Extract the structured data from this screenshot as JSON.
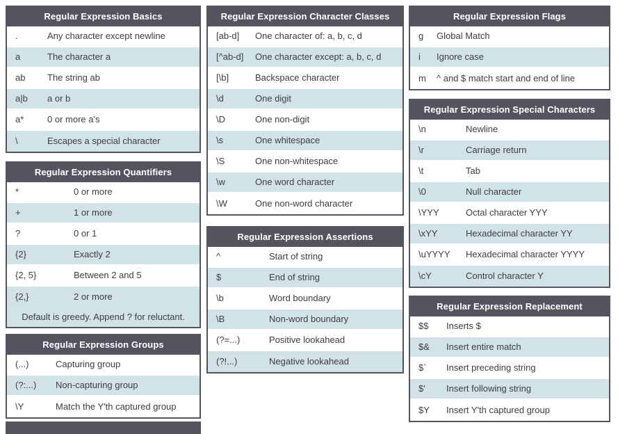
{
  "colors": {
    "header_bg": "#54545f",
    "border": "#54545f",
    "row_alt_bg": "#d1e2e9",
    "row_bg": "#ffffff",
    "header_text": "#ffffff",
    "row_text": "#3d3d3d"
  },
  "tables": [
    {
      "id": "basics",
      "title": "Regular Expression Basics",
      "rows": [
        {
          "symbol": ".",
          "description": "Any character except newline"
        },
        {
          "symbol": "a",
          "description": "The character a"
        },
        {
          "symbol": "ab",
          "description": "The string ab"
        },
        {
          "symbol": "a|b",
          "description": "a or b"
        },
        {
          "symbol": "a*",
          "description": "0 or more a's"
        },
        {
          "symbol": "\\",
          "description": "Escapes a special character"
        }
      ]
    },
    {
      "id": "quantifiers",
      "title": "Regular Expression Quantifiers",
      "rows": [
        {
          "symbol": "*",
          "description": "0 or more"
        },
        {
          "symbol": "+",
          "description": "1 or more"
        },
        {
          "symbol": "?",
          "description": "0 or 1"
        },
        {
          "symbol": "{2}",
          "description": "Exactly 2"
        },
        {
          "symbol": "{2, 5}",
          "description": "Between 2 and 5"
        },
        {
          "symbol": "{2,}",
          "description": "2 or more"
        }
      ],
      "footer": "Default is greedy. Append ? for reluctant."
    },
    {
      "id": "groups",
      "title": "Regular Expression Groups",
      "rows": [
        {
          "symbol": "(...)",
          "description": "Capturing group"
        },
        {
          "symbol": "(?:...)",
          "description": "Non-capturing group"
        },
        {
          "symbol": "\\Y",
          "description": "Match the Y'th captured group"
        }
      ]
    },
    {
      "id": "charclasses",
      "title": "Regular Expression Character Classes",
      "rows": [
        {
          "symbol": "[ab-d]",
          "description": "One character of: a, b, c, d"
        },
        {
          "symbol": "[^ab-d]",
          "description": "One character except: a, b, c, d"
        },
        {
          "symbol": "[\\b]",
          "description": "Backspace character"
        },
        {
          "symbol": "\\d",
          "description": "One digit"
        },
        {
          "symbol": "\\D",
          "description": "One non-digit"
        },
        {
          "symbol": "\\s",
          "description": "One whitespace"
        },
        {
          "symbol": "\\S",
          "description": "One non-whitespace"
        },
        {
          "symbol": "\\w",
          "description": "One word character"
        },
        {
          "symbol": "\\W",
          "description": "One non-word character"
        }
      ]
    },
    {
      "id": "assertions",
      "title": "Regular Expression Assertions",
      "rows": [
        {
          "symbol": "^",
          "description": "Start of string"
        },
        {
          "symbol": "$",
          "description": "End of string"
        },
        {
          "symbol": "\\b",
          "description": "Word boundary"
        },
        {
          "symbol": "\\B",
          "description": "Non-word boundary"
        },
        {
          "symbol": "(?=...)",
          "description": "Positive lookahead"
        },
        {
          "symbol": "(?!...)",
          "description": "Negative lookahead"
        }
      ]
    },
    {
      "id": "flags",
      "title": "Regular Expression Flags",
      "rows": [
        {
          "symbol": "g",
          "description": "Global Match"
        },
        {
          "symbol": "i",
          "description": "Ignore case"
        },
        {
          "symbol": "m",
          "description": "^ and $ match start and end of line"
        }
      ]
    },
    {
      "id": "special",
      "title": "Regular Expression Special Characters",
      "rows": [
        {
          "symbol": "\\n",
          "description": "Newline"
        },
        {
          "symbol": "\\r",
          "description": "Carriage return"
        },
        {
          "symbol": "\\t",
          "description": "Tab"
        },
        {
          "symbol": "\\0",
          "description": "Null character"
        },
        {
          "symbol": "\\YYY",
          "description": "Octal character YYY"
        },
        {
          "symbol": "\\xYY",
          "description": "Hexadecimal character YY"
        },
        {
          "symbol": "\\uYYYY",
          "description": "Hexadecimal character YYYY"
        },
        {
          "symbol": "\\cY",
          "description": "Control character Y"
        }
      ]
    },
    {
      "id": "replacement",
      "title": "Regular Expression Replacement",
      "rows": [
        {
          "symbol": "$$",
          "description": "Inserts $"
        },
        {
          "symbol": "$&",
          "description": "Insert entire match"
        },
        {
          "symbol": "$`",
          "description": "Insert preceding string"
        },
        {
          "symbol": "$'",
          "description": "Insert following string"
        },
        {
          "symbol": "$Y",
          "description": "Insert Y'th captured group"
        }
      ]
    }
  ]
}
